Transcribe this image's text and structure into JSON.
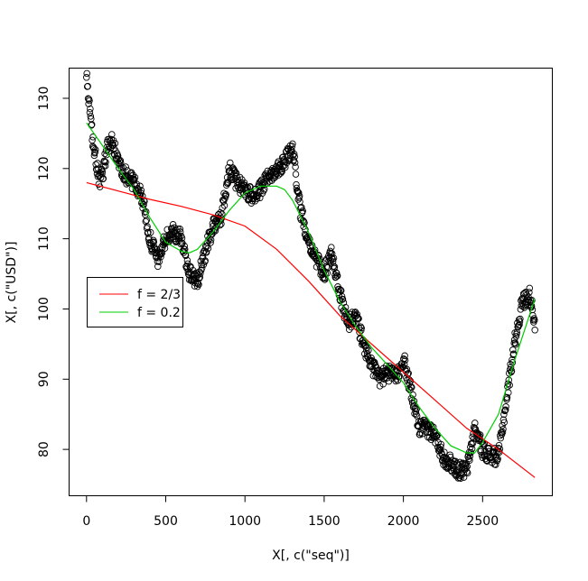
{
  "chart_data": {
    "type": "scatter",
    "title": "",
    "xlabel": "X[, c(\"seq\")]",
    "ylabel": "X[, c(\"USD\")]",
    "xlim": [
      -110,
      2940
    ],
    "ylim": [
      73.4,
      134.3
    ],
    "x_ticks": [
      0,
      500,
      1000,
      1500,
      2000,
      2500
    ],
    "x_tick_labels": [
      "0",
      "500",
      "1000",
      "1500",
      "2000",
      "2500"
    ],
    "y_ticks": [
      80,
      90,
      100,
      110,
      120,
      130
    ],
    "y_tick_labels": [
      "80",
      "90",
      "100",
      "110",
      "120",
      "130"
    ],
    "grid": false,
    "legend": {
      "position": "left-middle",
      "entries": [
        "f = 2/3",
        "f = 0.2"
      ]
    },
    "points": {
      "name": "",
      "color": "#000000",
      "anchors_x": [
        0,
        20,
        40,
        60,
        80,
        100,
        130,
        160,
        200,
        250,
        300,
        350,
        400,
        450,
        500,
        550,
        600,
        650,
        700,
        750,
        800,
        850,
        900,
        950,
        1000,
        1050,
        1100,
        1150,
        1200,
        1250,
        1300,
        1350,
        1400,
        1450,
        1500,
        1550,
        1600,
        1650,
        1700,
        1750,
        1800,
        1850,
        1900,
        1950,
        2000,
        2050,
        2100,
        2150,
        2200,
        2250,
        2300,
        2350,
        2400,
        2450,
        2500,
        2550,
        2600,
        2650,
        2700,
        2750,
        2800,
        2830
      ],
      "anchors_y": [
        133,
        128,
        124,
        121,
        118,
        119,
        123,
        124,
        121,
        119,
        118,
        116,
        110,
        107,
        110,
        111,
        110,
        105,
        104,
        108,
        112,
        113,
        120,
        118,
        117,
        116,
        117,
        119,
        120,
        121,
        123,
        114,
        110,
        107,
        105,
        108,
        102,
        98,
        99,
        95,
        92,
        90,
        91,
        90,
        93,
        88,
        83,
        83,
        82,
        79,
        78,
        77,
        77,
        83,
        80,
        79,
        79,
        87,
        95,
        101,
        102,
        98
      ],
      "count": 1100,
      "noise": 1.2
    },
    "series": [
      {
        "name": "f = 2/3",
        "color": "#ff0000",
        "x": [
          0,
          200,
          400,
          600,
          800,
          1000,
          1200,
          1400,
          1600,
          1800,
          2000,
          2200,
          2400,
          2600,
          2830
        ],
        "y": [
          118,
          116.8,
          115.6,
          114.6,
          113.4,
          111.8,
          108.5,
          104,
          99,
          95,
          91,
          87,
          83,
          80,
          76
        ]
      },
      {
        "name": "f = 0.2",
        "color": "#00cd00",
        "x": [
          0,
          100,
          200,
          300,
          400,
          500,
          600,
          650,
          700,
          800,
          900,
          1000,
          1100,
          1200,
          1250,
          1300,
          1400,
          1500,
          1600,
          1700,
          1800,
          1900,
          2000,
          2100,
          2200,
          2300,
          2400,
          2450,
          2500,
          2600,
          2700,
          2830
        ],
        "y": [
          126.5,
          123.3,
          120,
          117,
          113,
          109.5,
          108.2,
          108,
          108.5,
          111,
          114,
          116.5,
          117.5,
          117.5,
          117,
          115.5,
          111,
          105.5,
          101,
          97.5,
          94.5,
          92,
          89.5,
          86,
          83,
          80.5,
          79.5,
          79.5,
          81,
          85,
          92.5,
          101.5
        ]
      }
    ]
  }
}
